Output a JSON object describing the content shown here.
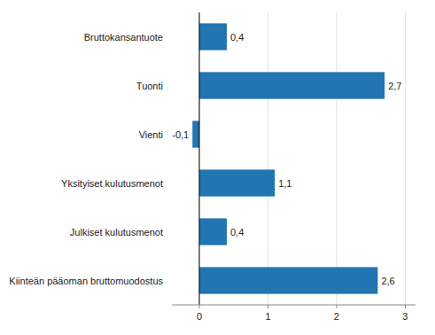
{
  "chart_data": {
    "type": "bar",
    "orientation": "horizontal",
    "categories": [
      "Kiinteän pääoman bruttomuodostus",
      "Julkiset kulutusmenot",
      "Yksityiset kulutusmenot",
      "Vienti",
      "Tuonti",
      "Bruttokansantuote"
    ],
    "values": [
      2.6,
      0.4,
      1.1,
      -0.1,
      2.7,
      0.4
    ],
    "value_labels": [
      "2,6",
      "0,4",
      "1,1",
      "-0,1",
      "2,7",
      "0,4"
    ],
    "data_labels": true,
    "color": "#2175b0",
    "xlim": [
      -0.4,
      3.15
    ],
    "xticks": [
      0,
      1,
      2,
      3
    ],
    "grid": true
  }
}
